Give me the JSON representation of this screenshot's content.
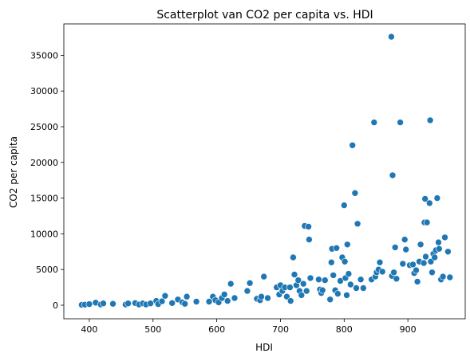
{
  "chart_data": {
    "type": "scatter",
    "title": "Scatterplot van CO2 per capita vs. HDI",
    "xlabel": "HDI",
    "ylabel": "CO2 per capita",
    "xlim": [
      360,
      990
    ],
    "ylim": [
      -1900,
      39400
    ],
    "xticks": [
      400,
      500,
      600,
      700,
      800,
      900
    ],
    "yticks": [
      0,
      5000,
      10000,
      15000,
      20000,
      25000,
      30000,
      35000
    ],
    "grid": false,
    "legend": "none",
    "marker_color": "#1f77b4",
    "points": [
      [
        388,
        50
      ],
      [
        393,
        80
      ],
      [
        400,
        150
      ],
      [
        410,
        350
      ],
      [
        418,
        100
      ],
      [
        422,
        250
      ],
      [
        437,
        200
      ],
      [
        457,
        100
      ],
      [
        461,
        250
      ],
      [
        472,
        300
      ],
      [
        478,
        100
      ],
      [
        484,
        250
      ],
      [
        489,
        100
      ],
      [
        496,
        250
      ],
      [
        505,
        600
      ],
      [
        508,
        150
      ],
      [
        514,
        550
      ],
      [
        519,
        1300
      ],
      [
        530,
        300
      ],
      [
        539,
        800
      ],
      [
        546,
        400
      ],
      [
        550,
        200
      ],
      [
        553,
        1200
      ],
      [
        568,
        500
      ],
      [
        588,
        500
      ],
      [
        594,
        1200
      ],
      [
        598,
        700
      ],
      [
        603,
        400
      ],
      [
        608,
        1000
      ],
      [
        612,
        1500
      ],
      [
        617,
        600
      ],
      [
        622,
        3000
      ],
      [
        628,
        1000
      ],
      [
        648,
        2000
      ],
      [
        652,
        3100
      ],
      [
        663,
        900
      ],
      [
        668,
        700
      ],
      [
        670,
        1200
      ],
      [
        674,
        4000
      ],
      [
        680,
        1000
      ],
      [
        694,
        2500
      ],
      [
        698,
        1500
      ],
      [
        700,
        2800
      ],
      [
        703,
        2000
      ],
      [
        707,
        2500
      ],
      [
        710,
        1200
      ],
      [
        715,
        2500
      ],
      [
        716,
        600
      ],
      [
        720,
        6700
      ],
      [
        722,
        4300
      ],
      [
        725,
        2800
      ],
      [
        728,
        3500
      ],
      [
        730,
        2000
      ],
      [
        733,
        1400
      ],
      [
        736,
        3000
      ],
      [
        738,
        11100
      ],
      [
        741,
        2000
      ],
      [
        744,
        11000
      ],
      [
        745,
        9200
      ],
      [
        747,
        3800
      ],
      [
        760,
        3600
      ],
      [
        762,
        2200
      ],
      [
        764,
        1700
      ],
      [
        766,
        2100
      ],
      [
        770,
        3500
      ],
      [
        778,
        800
      ],
      [
        780,
        6000
      ],
      [
        781,
        7900
      ],
      [
        783,
        4200
      ],
      [
        786,
        2100
      ],
      [
        788,
        8000
      ],
      [
        790,
        1600
      ],
      [
        794,
        3400
      ],
      [
        797,
        6700
      ],
      [
        800,
        14000
      ],
      [
        801,
        6100
      ],
      [
        802,
        3800
      ],
      [
        804,
        1400
      ],
      [
        805,
        8500
      ],
      [
        807,
        4400
      ],
      [
        810,
        2900
      ],
      [
        813,
        22400
      ],
      [
        817,
        15700
      ],
      [
        819,
        2400
      ],
      [
        821,
        11400
      ],
      [
        826,
        3600
      ],
      [
        830,
        2400
      ],
      [
        843,
        3600
      ],
      [
        847,
        25600
      ],
      [
        849,
        4000
      ],
      [
        851,
        4600
      ],
      [
        854,
        5000
      ],
      [
        856,
        6000
      ],
      [
        860,
        4700
      ],
      [
        874,
        37600
      ],
      [
        875,
        4100
      ],
      [
        876,
        18200
      ],
      [
        878,
        4600
      ],
      [
        880,
        8100
      ],
      [
        882,
        3700
      ],
      [
        888,
        25600
      ],
      [
        892,
        5800
      ],
      [
        895,
        9200
      ],
      [
        897,
        7800
      ],
      [
        903,
        5600
      ],
      [
        908,
        5700
      ],
      [
        910,
        4500
      ],
      [
        913,
        4900
      ],
      [
        915,
        3300
      ],
      [
        918,
        6100
      ],
      [
        920,
        8500
      ],
      [
        925,
        5900
      ],
      [
        926,
        11600
      ],
      [
        927,
        14900
      ],
      [
        928,
        6800
      ],
      [
        930,
        11600
      ],
      [
        934,
        14300
      ],
      [
        935,
        25900
      ],
      [
        936,
        6100
      ],
      [
        938,
        4600
      ],
      [
        940,
        7200
      ],
      [
        942,
        6700
      ],
      [
        944,
        7700
      ],
      [
        946,
        15000
      ],
      [
        948,
        8800
      ],
      [
        949,
        7900
      ],
      [
        952,
        3600
      ],
      [
        955,
        4000
      ],
      [
        958,
        9500
      ],
      [
        963,
        7500
      ],
      [
        966,
        3900
      ]
    ]
  }
}
